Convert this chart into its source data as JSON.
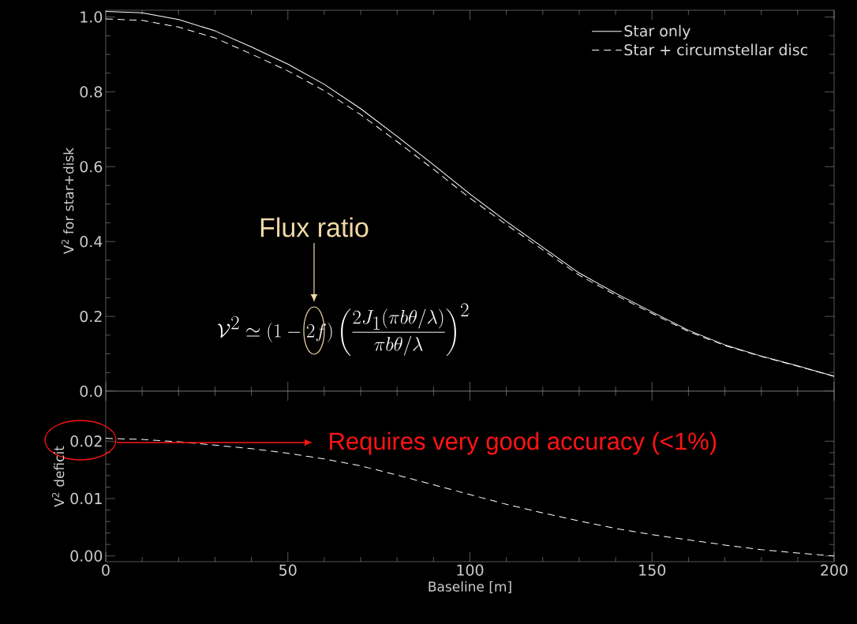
{
  "chart_data": [
    {
      "type": "line",
      "ylabel": "V$^{2}$ for star+disk",
      "xlim": [
        0,
        200
      ],
      "ylim": [
        0,
        1.018
      ],
      "xticks": [
        0,
        50,
        100,
        150,
        200
      ],
      "yticks": [
        {
          "value": 0,
          "label": "0.0"
        },
        {
          "value": 0.2,
          "label": "0.2"
        },
        {
          "value": 0.4,
          "label": "0.4"
        },
        {
          "value": 0.6,
          "label": "0.6"
        },
        {
          "value": 0.8,
          "label": "0.8"
        },
        {
          "value": 1,
          "label": "1.0"
        }
      ],
      "tick_labels": "y",
      "legend": "top right",
      "grid": false,
      "x": [
        0,
        10,
        20,
        30,
        40,
        50,
        60,
        70,
        80,
        90,
        100,
        110,
        120,
        130,
        140,
        150,
        160,
        170,
        180,
        190,
        200
      ],
      "series": [
        {
          "name": "Star only",
          "color": "#ffffff",
          "line_style": "solid",
          "values": [
            1.015,
            1.011,
            0.993,
            0.963,
            0.92,
            0.874,
            0.82,
            0.755,
            0.681,
            0.605,
            0.527,
            0.454,
            0.385,
            0.316,
            0.262,
            0.212,
            0.163,
            0.124,
            0.094,
            0.068,
            0.04
          ]
        },
        {
          "name": "Star + circumstellar disc",
          "color": "#ffffff",
          "line_style": "dashed",
          "values": [
            0.995,
            0.991,
            0.973,
            0.944,
            0.901,
            0.856,
            0.803,
            0.739,
            0.667,
            0.593,
            0.516,
            0.445,
            0.378,
            0.31,
            0.257,
            0.208,
            0.16,
            0.122,
            0.093,
            0.067,
            0.04
          ]
        }
      ],
      "annotations": [
        "Flux ratio",
        "\\mathcal{V}^2 \\simeq (1-2f)\\left(\\frac{2J_1(\\pi b\\theta/\\lambda)}{\\pi b\\theta/\\lambda}\\right)^2"
      ]
    },
    {
      "type": "line",
      "xlabel": "Baseline [m]",
      "ylabel": "V$^{2}$ deficit",
      "xlim": [
        0,
        200
      ],
      "ylim": [
        -0.001,
        0.0287
      ],
      "xticks": [
        0,
        50,
        100,
        150,
        200
      ],
      "yticks": [
        {
          "value": 0,
          "label": "0.00"
        },
        {
          "value": 0.01,
          "label": "0.01"
        },
        {
          "value": 0.02,
          "label": "0.02"
        }
      ],
      "grid": false,
      "x": [
        0,
        10,
        20,
        30,
        40,
        50,
        60,
        70,
        80,
        90,
        100,
        110,
        120,
        130,
        140,
        150,
        160,
        170,
        180,
        190,
        200
      ],
      "series": [
        {
          "color": "#ffffff",
          "line_style": "dashed",
          "values": [
            0.0205,
            0.0203,
            0.0199,
            0.0193,
            0.0187,
            0.0179,
            0.0169,
            0.0157,
            0.0141,
            0.0124,
            0.0107,
            0.009,
            0.0075,
            0.0061,
            0.0048,
            0.0037,
            0.0028,
            0.0019,
            0.0011,
            0.0005,
            0.0
          ]
        }
      ],
      "annotations": [
        "Requires very good accuracy (<1%)"
      ]
    }
  ]
}
